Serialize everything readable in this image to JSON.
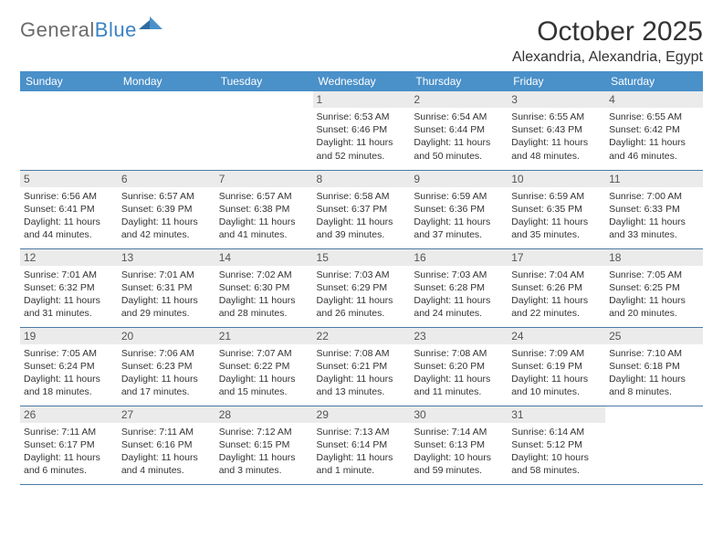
{
  "logo": {
    "text1": "General",
    "text2": "Blue"
  },
  "title": "October 2025",
  "location": "Alexandria, Alexandria, Egypt",
  "colors": {
    "header_bg": "#4a90c9",
    "header_text": "#ffffff",
    "rule": "#4a7aa5",
    "daynum_bg": "#ebebeb",
    "logo_gray": "#6b6b6b",
    "logo_blue": "#3b82c4"
  },
  "weekdays": [
    "Sunday",
    "Monday",
    "Tuesday",
    "Wednesday",
    "Thursday",
    "Friday",
    "Saturday"
  ],
  "weeks": [
    [
      {
        "day": "",
        "sunrise": "",
        "sunset": "",
        "daylight": ""
      },
      {
        "day": "",
        "sunrise": "",
        "sunset": "",
        "daylight": ""
      },
      {
        "day": "",
        "sunrise": "",
        "sunset": "",
        "daylight": ""
      },
      {
        "day": "1",
        "sunrise": "Sunrise: 6:53 AM",
        "sunset": "Sunset: 6:46 PM",
        "daylight": "Daylight: 11 hours and 52 minutes."
      },
      {
        "day": "2",
        "sunrise": "Sunrise: 6:54 AM",
        "sunset": "Sunset: 6:44 PM",
        "daylight": "Daylight: 11 hours and 50 minutes."
      },
      {
        "day": "3",
        "sunrise": "Sunrise: 6:55 AM",
        "sunset": "Sunset: 6:43 PM",
        "daylight": "Daylight: 11 hours and 48 minutes."
      },
      {
        "day": "4",
        "sunrise": "Sunrise: 6:55 AM",
        "sunset": "Sunset: 6:42 PM",
        "daylight": "Daylight: 11 hours and 46 minutes."
      }
    ],
    [
      {
        "day": "5",
        "sunrise": "Sunrise: 6:56 AM",
        "sunset": "Sunset: 6:41 PM",
        "daylight": "Daylight: 11 hours and 44 minutes."
      },
      {
        "day": "6",
        "sunrise": "Sunrise: 6:57 AM",
        "sunset": "Sunset: 6:39 PM",
        "daylight": "Daylight: 11 hours and 42 minutes."
      },
      {
        "day": "7",
        "sunrise": "Sunrise: 6:57 AM",
        "sunset": "Sunset: 6:38 PM",
        "daylight": "Daylight: 11 hours and 41 minutes."
      },
      {
        "day": "8",
        "sunrise": "Sunrise: 6:58 AM",
        "sunset": "Sunset: 6:37 PM",
        "daylight": "Daylight: 11 hours and 39 minutes."
      },
      {
        "day": "9",
        "sunrise": "Sunrise: 6:59 AM",
        "sunset": "Sunset: 6:36 PM",
        "daylight": "Daylight: 11 hours and 37 minutes."
      },
      {
        "day": "10",
        "sunrise": "Sunrise: 6:59 AM",
        "sunset": "Sunset: 6:35 PM",
        "daylight": "Daylight: 11 hours and 35 minutes."
      },
      {
        "day": "11",
        "sunrise": "Sunrise: 7:00 AM",
        "sunset": "Sunset: 6:33 PM",
        "daylight": "Daylight: 11 hours and 33 minutes."
      }
    ],
    [
      {
        "day": "12",
        "sunrise": "Sunrise: 7:01 AM",
        "sunset": "Sunset: 6:32 PM",
        "daylight": "Daylight: 11 hours and 31 minutes."
      },
      {
        "day": "13",
        "sunrise": "Sunrise: 7:01 AM",
        "sunset": "Sunset: 6:31 PM",
        "daylight": "Daylight: 11 hours and 29 minutes."
      },
      {
        "day": "14",
        "sunrise": "Sunrise: 7:02 AM",
        "sunset": "Sunset: 6:30 PM",
        "daylight": "Daylight: 11 hours and 28 minutes."
      },
      {
        "day": "15",
        "sunrise": "Sunrise: 7:03 AM",
        "sunset": "Sunset: 6:29 PM",
        "daylight": "Daylight: 11 hours and 26 minutes."
      },
      {
        "day": "16",
        "sunrise": "Sunrise: 7:03 AM",
        "sunset": "Sunset: 6:28 PM",
        "daylight": "Daylight: 11 hours and 24 minutes."
      },
      {
        "day": "17",
        "sunrise": "Sunrise: 7:04 AM",
        "sunset": "Sunset: 6:26 PM",
        "daylight": "Daylight: 11 hours and 22 minutes."
      },
      {
        "day": "18",
        "sunrise": "Sunrise: 7:05 AM",
        "sunset": "Sunset: 6:25 PM",
        "daylight": "Daylight: 11 hours and 20 minutes."
      }
    ],
    [
      {
        "day": "19",
        "sunrise": "Sunrise: 7:05 AM",
        "sunset": "Sunset: 6:24 PM",
        "daylight": "Daylight: 11 hours and 18 minutes."
      },
      {
        "day": "20",
        "sunrise": "Sunrise: 7:06 AM",
        "sunset": "Sunset: 6:23 PM",
        "daylight": "Daylight: 11 hours and 17 minutes."
      },
      {
        "day": "21",
        "sunrise": "Sunrise: 7:07 AM",
        "sunset": "Sunset: 6:22 PM",
        "daylight": "Daylight: 11 hours and 15 minutes."
      },
      {
        "day": "22",
        "sunrise": "Sunrise: 7:08 AM",
        "sunset": "Sunset: 6:21 PM",
        "daylight": "Daylight: 11 hours and 13 minutes."
      },
      {
        "day": "23",
        "sunrise": "Sunrise: 7:08 AM",
        "sunset": "Sunset: 6:20 PM",
        "daylight": "Daylight: 11 hours and 11 minutes."
      },
      {
        "day": "24",
        "sunrise": "Sunrise: 7:09 AM",
        "sunset": "Sunset: 6:19 PM",
        "daylight": "Daylight: 11 hours and 10 minutes."
      },
      {
        "day": "25",
        "sunrise": "Sunrise: 7:10 AM",
        "sunset": "Sunset: 6:18 PM",
        "daylight": "Daylight: 11 hours and 8 minutes."
      }
    ],
    [
      {
        "day": "26",
        "sunrise": "Sunrise: 7:11 AM",
        "sunset": "Sunset: 6:17 PM",
        "daylight": "Daylight: 11 hours and 6 minutes."
      },
      {
        "day": "27",
        "sunrise": "Sunrise: 7:11 AM",
        "sunset": "Sunset: 6:16 PM",
        "daylight": "Daylight: 11 hours and 4 minutes."
      },
      {
        "day": "28",
        "sunrise": "Sunrise: 7:12 AM",
        "sunset": "Sunset: 6:15 PM",
        "daylight": "Daylight: 11 hours and 3 minutes."
      },
      {
        "day": "29",
        "sunrise": "Sunrise: 7:13 AM",
        "sunset": "Sunset: 6:14 PM",
        "daylight": "Daylight: 11 hours and 1 minute."
      },
      {
        "day": "30",
        "sunrise": "Sunrise: 7:14 AM",
        "sunset": "Sunset: 6:13 PM",
        "daylight": "Daylight: 10 hours and 59 minutes."
      },
      {
        "day": "31",
        "sunrise": "Sunrise: 6:14 AM",
        "sunset": "Sunset: 5:12 PM",
        "daylight": "Daylight: 10 hours and 58 minutes."
      },
      {
        "day": "",
        "sunrise": "",
        "sunset": "",
        "daylight": ""
      }
    ]
  ]
}
